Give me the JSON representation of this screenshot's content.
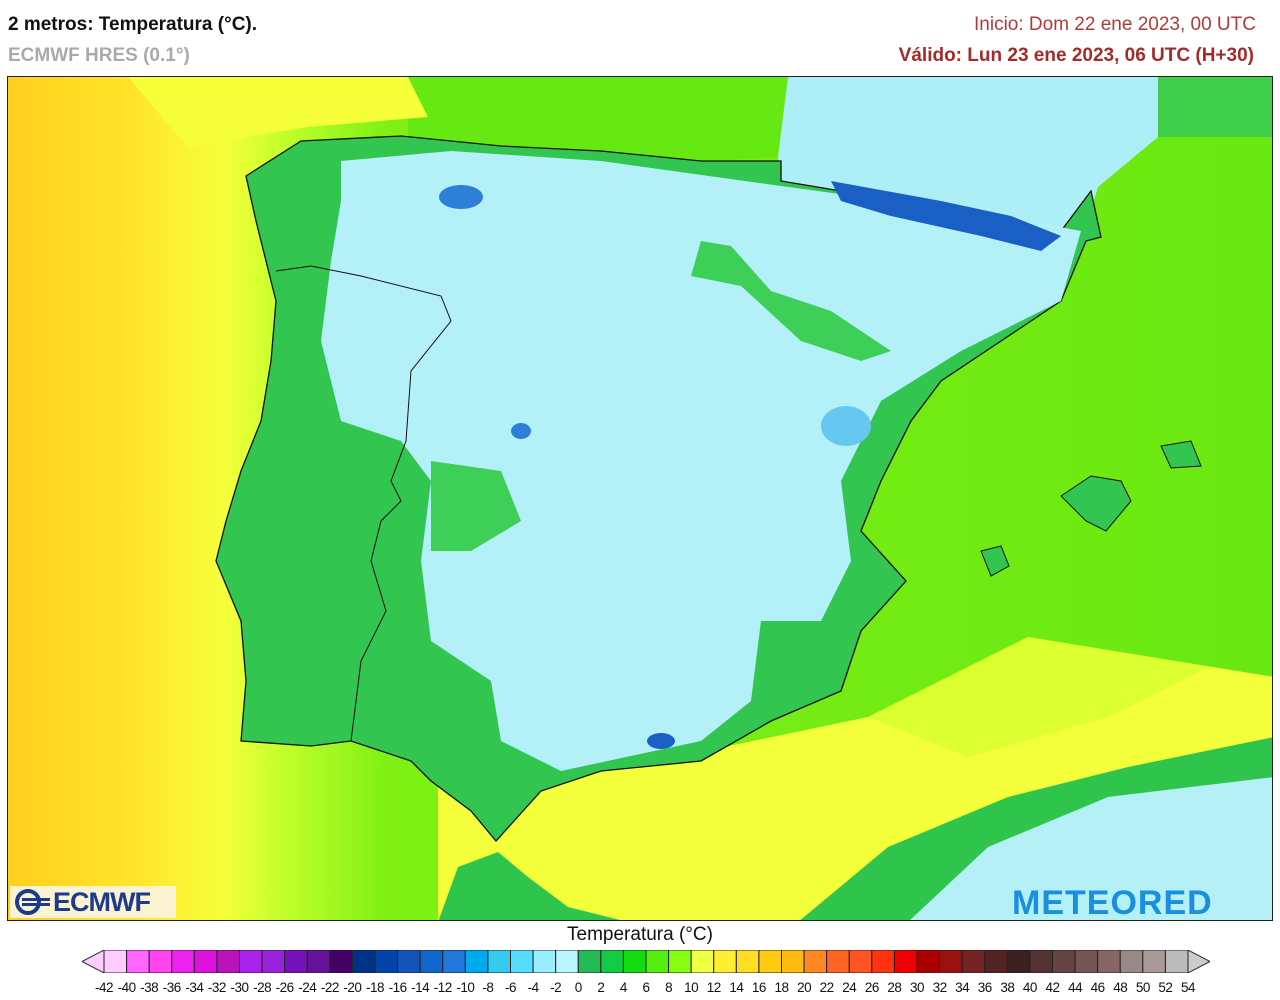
{
  "header": {
    "title": "2 metros: Temperatura (°C).",
    "model": "ECMWF HRES (0.1°)",
    "init": "Inicio: Dom 22 ene 2023, 00 UTC",
    "valid": "Válido: Lun 23 ene 2023, 06 UTC (H+30)"
  },
  "logos": {
    "left": "ECMWF",
    "right": "METEORED"
  },
  "legend": {
    "title": "Temperatura (°C)",
    "ticks": [
      -42,
      -40,
      -38,
      -36,
      -34,
      -32,
      -30,
      -28,
      -26,
      -24,
      -22,
      -20,
      -18,
      -16,
      -14,
      -12,
      -10,
      -8,
      -6,
      -4,
      -2,
      0,
      2,
      4,
      6,
      8,
      10,
      12,
      14,
      16,
      18,
      20,
      22,
      24,
      26,
      28,
      30,
      32,
      34,
      36,
      38,
      40,
      42,
      44,
      46,
      48,
      50,
      52,
      54
    ],
    "colors": [
      "#ffccff",
      "#ff66ff",
      "#ff44ee",
      "#ee22ee",
      "#dd11dd",
      "#bb11bb",
      "#aa22ee",
      "#9922dd",
      "#7711bb",
      "#661199",
      "#440066",
      "#003388",
      "#0044aa",
      "#1155bb",
      "#1166cc",
      "#2277dd",
      "#00aaee",
      "#33ccee",
      "#55ddff",
      "#99eeff",
      "#bbf5ff",
      "#22bb55",
      "#11cc44",
      "#11dd11",
      "#55ee11",
      "#88ff11",
      "#eeff44",
      "#ffee33",
      "#ffdd22",
      "#ffcc11",
      "#ffbb11",
      "#ff8822",
      "#ff6622",
      "#ff5522",
      "#ff3311",
      "#ee0000",
      "#aa0000",
      "#991111",
      "#772222",
      "#552222",
      "#3a2020",
      "#553333",
      "#664444",
      "#775555",
      "#886666",
      "#998888",
      "#aa9999",
      "#bbbbbb"
    ],
    "under_color": "#ffccff",
    "over_color": "#cccccc"
  }
}
